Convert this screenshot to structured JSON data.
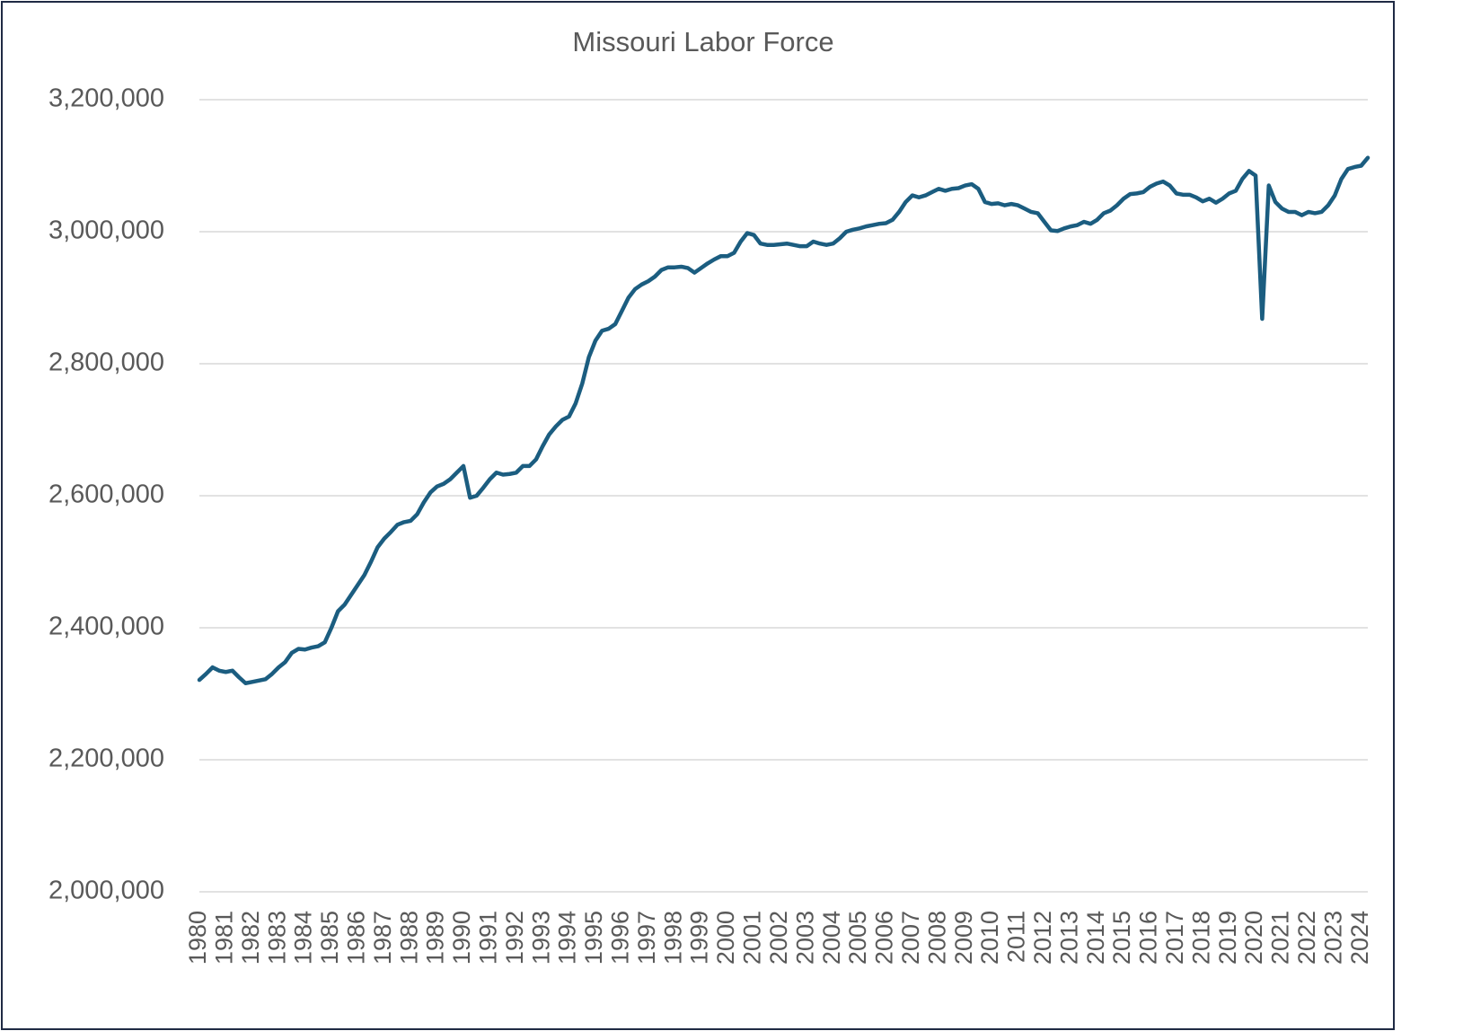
{
  "chart_data": {
    "type": "line",
    "title": "Missouri Labor Force",
    "categories": [
      "1980",
      null,
      null,
      null,
      "1981",
      null,
      null,
      null,
      "1982",
      null,
      null,
      null,
      "1983",
      null,
      null,
      null,
      "1984",
      null,
      null,
      null,
      "1985",
      null,
      null,
      null,
      "1986",
      null,
      null,
      null,
      "1987",
      null,
      null,
      null,
      "1988",
      null,
      null,
      null,
      "1989",
      null,
      null,
      null,
      "1990",
      null,
      null,
      null,
      "1991",
      null,
      null,
      null,
      "1992",
      null,
      null,
      null,
      "1993",
      null,
      null,
      null,
      "1994",
      null,
      null,
      null,
      "1995",
      null,
      null,
      null,
      "1996",
      null,
      null,
      null,
      "1997",
      null,
      null,
      null,
      "1998",
      null,
      null,
      null,
      "1999",
      null,
      null,
      null,
      "2000",
      null,
      null,
      null,
      "2001",
      null,
      null,
      null,
      "2002",
      null,
      null,
      null,
      "2003",
      null,
      null,
      null,
      "2004",
      null,
      null,
      null,
      "2005",
      null,
      null,
      null,
      "2006",
      null,
      null,
      null,
      "2007",
      null,
      null,
      null,
      "2008",
      null,
      null,
      null,
      "2009",
      null,
      null,
      null,
      "2010",
      null,
      null,
      null,
      "2011",
      null,
      null,
      null,
      "2012",
      null,
      null,
      null,
      "2013",
      null,
      null,
      null,
      "2014",
      null,
      null,
      null,
      "2015",
      null,
      null,
      null,
      "2016",
      null,
      null,
      null,
      "2017",
      null,
      null,
      null,
      "2018",
      null,
      null,
      null,
      "2019",
      null,
      null,
      null,
      "2020",
      null,
      null,
      null,
      "2021",
      null,
      null,
      null,
      "2022",
      null,
      null,
      null,
      "2023",
      null,
      null,
      null,
      "2024",
      null
    ],
    "series": [
      {
        "name": "Missouri Labor Force",
        "color": "#1b5d80",
        "values": [
          2321000,
          2330000,
          2340000,
          2335000,
          2333000,
          2335000,
          2325000,
          2316000,
          2318000,
          2320000,
          2322000,
          2330000,
          2340000,
          2348000,
          2362000,
          2368000,
          2367000,
          2370000,
          2372000,
          2378000,
          2400000,
          2425000,
          2435000,
          2450000,
          2465000,
          2480000,
          2500000,
          2522000,
          2535000,
          2545000,
          2556000,
          2560000,
          2562000,
          2572000,
          2590000,
          2605000,
          2614000,
          2618000,
          2625000,
          2635000,
          2645000,
          2597000,
          2600000,
          2612000,
          2625000,
          2635000,
          2632000,
          2633000,
          2635000,
          2645000,
          2645000,
          2655000,
          2675000,
          2693000,
          2705000,
          2715000,
          2720000,
          2740000,
          2770000,
          2810000,
          2835000,
          2850000,
          2853000,
          2860000,
          2880000,
          2900000,
          2913000,
          2920000,
          2925000,
          2932000,
          2942000,
          2946000,
          2946000,
          2947000,
          2945000,
          2938000,
          2945000,
          2952000,
          2958000,
          2963000,
          2963000,
          2968000,
          2985000,
          2998000,
          2995000,
          2982000,
          2980000,
          2980000,
          2981000,
          2982000,
          2980000,
          2978000,
          2978000,
          2985000,
          2982000,
          2980000,
          2982000,
          2990000,
          3000000,
          3003000,
          3005000,
          3008000,
          3010000,
          3012000,
          3013000,
          3018000,
          3030000,
          3045000,
          3055000,
          3052000,
          3055000,
          3060000,
          3065000,
          3062000,
          3065000,
          3066000,
          3070000,
          3072000,
          3065000,
          3045000,
          3042000,
          3043000,
          3040000,
          3042000,
          3040000,
          3035000,
          3030000,
          3028000,
          3015000,
          3002000,
          3001000,
          3005000,
          3008000,
          3010000,
          3015000,
          3012000,
          3018000,
          3028000,
          3032000,
          3040000,
          3050000,
          3057000,
          3058000,
          3060000,
          3068000,
          3073000,
          3076000,
          3070000,
          3058000,
          3056000,
          3056000,
          3052000,
          3046000,
          3050000,
          3044000,
          3050000,
          3058000,
          3062000,
          3080000,
          3092000,
          3085000,
          2868000,
          3070000,
          3045000,
          3035000,
          3030000,
          3030000,
          3025000,
          3030000,
          3028000,
          3030000,
          3040000,
          3055000,
          3080000,
          3095000,
          3098000,
          3100000,
          3112000
        ]
      }
    ],
    "ylim": [
      2000000,
      3200000
    ],
    "yticks": [
      {
        "value": 2000000,
        "label": "2,000,000"
      },
      {
        "value": 2200000,
        "label": "2,200,000"
      },
      {
        "value": 2400000,
        "label": "2,400,000"
      },
      {
        "value": 2600000,
        "label": "2,600,000"
      },
      {
        "value": 2800000,
        "label": "2,800,000"
      },
      {
        "value": 3000000,
        "label": "3,000,000"
      },
      {
        "value": 3200000,
        "label": "3,200,000"
      }
    ],
    "grid": true
  }
}
